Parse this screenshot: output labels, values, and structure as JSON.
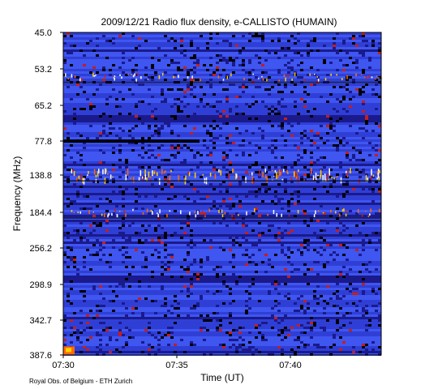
{
  "chart_data": {
    "type": "heatmap",
    "title": "2009/12/21  Radio flux density, e-CALLISTO (HUMAIN)",
    "xlabel": "Time (UT)",
    "ylabel": "Frequency (MHz)",
    "x_ticks": [
      "07:30",
      "07:35",
      "07:40"
    ],
    "y_ticks": [
      "45.0",
      "53.2",
      "65.2",
      "77.8",
      "138.8",
      "184.4",
      "256.2",
      "298.9",
      "342.7",
      "387.6"
    ],
    "x_range": [
      "07:30",
      "07:44"
    ],
    "y_range": [
      45.0,
      387.6
    ],
    "y_axis_direction": "frequency increases downward",
    "colormap": [
      "#000000",
      "#1a1a8c",
      "#2f3fd6",
      "#3f56f0",
      "#c41e1e",
      "#ff6a00",
      "#ffd000",
      "#ffffff"
    ],
    "background_color": "#2f3fd6",
    "features": [
      {
        "kind": "bright band",
        "frequency_MHz": 140,
        "time_span": [
          "07:30",
          "07:44"
        ],
        "intensity": "high"
      },
      {
        "kind": "bright band",
        "frequency_MHz": 186,
        "time_span": [
          "07:30",
          "07:44"
        ],
        "intensity": "medium"
      },
      {
        "kind": "bright band",
        "frequency_MHz": 56,
        "time_span": [
          "07:30",
          "07:44"
        ],
        "intensity": "medium"
      },
      {
        "kind": "dark band",
        "frequency_MHz": 78,
        "time_span": [
          "07:30",
          "07:36"
        ],
        "intensity": "low"
      },
      {
        "kind": "burst",
        "frequency_MHz": 387,
        "time_span": [
          "07:30",
          "07:30.5"
        ],
        "intensity": "high"
      }
    ],
    "grid": false,
    "legend": "none"
  },
  "footer": {
    "credit": "Royal Obs. of Belgium - ETH Zurich"
  }
}
